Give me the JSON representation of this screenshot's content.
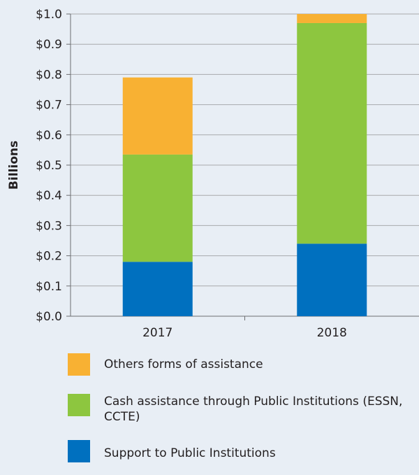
{
  "chart_data": {
    "type": "bar",
    "stacked": true,
    "categories": [
      "2017",
      "2018"
    ],
    "series": [
      {
        "name": "Support to Public Institutions",
        "color": "#0070bf",
        "values": [
          0.18,
          0.24
        ]
      },
      {
        "name": "Cash assistance through Public Institutions (ESSN, CCTE)",
        "color": "#8dc63f",
        "values": [
          0.355,
          0.73
        ]
      },
      {
        "name": "Others forms of assistance",
        "color": "#f8b133",
        "values": [
          0.255,
          0.03
        ]
      }
    ],
    "ylabel": "Billions",
    "ylim": [
      0,
      1.0
    ],
    "yticks": [
      "$0.0",
      "$0.1",
      "$0.2",
      "$0.3",
      "$0.4",
      "$0.5",
      "$0.6",
      "$0.7",
      "$0.8",
      "$0.9",
      "$1.0"
    ],
    "grid": true,
    "legend_position": "bottom"
  },
  "legend": {
    "items": [
      {
        "label": "Others forms of assistance",
        "color": "#f8b133"
      },
      {
        "label": "Cash assistance through Public Institutions (ESSN, CCTE)",
        "color": "#8dc63f"
      },
      {
        "label": "Support to Public Institutions",
        "color": "#0070bf"
      }
    ]
  }
}
